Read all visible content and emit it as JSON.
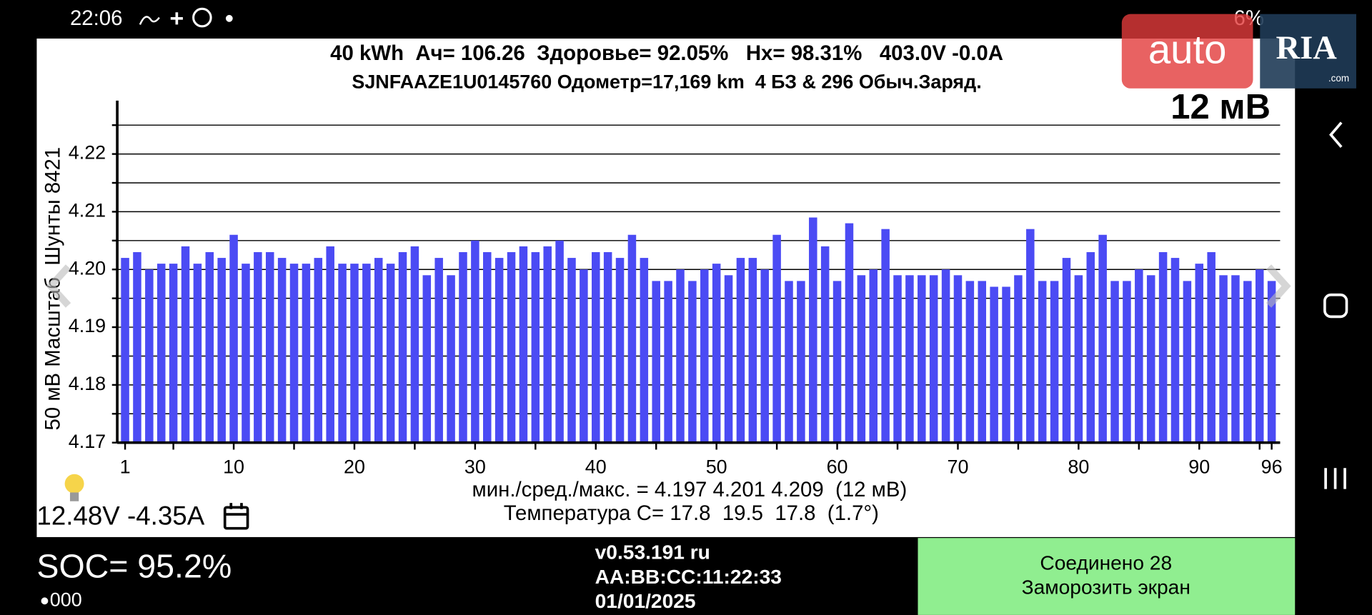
{
  "status_bar": {
    "time": "22:06",
    "battery": "6%"
  },
  "watermark": {
    "brand": "auto",
    "logo": "RIA",
    "domain": ".com"
  },
  "header": {
    "line1": "40 kWh  Ач= 106.26  Здоровье= 92.05%   Hx= 98.31%   403.0V -0.0A",
    "line2": "SJNFAAZE1U0145760 Одометр=17,169 km  4 БЗ & 296 Обыч.Заряд.",
    "scale": "12 мВ"
  },
  "chart_data": {
    "type": "bar",
    "y_label": "50 мВ Масштаб  Шунты 8421",
    "x": [
      1,
      2,
      3,
      4,
      5,
      6,
      7,
      8,
      9,
      10,
      11,
      12,
      13,
      14,
      15,
      16,
      17,
      18,
      19,
      20,
      21,
      22,
      23,
      24,
      25,
      26,
      27,
      28,
      29,
      30,
      31,
      32,
      33,
      34,
      35,
      36,
      37,
      38,
      39,
      40,
      41,
      42,
      43,
      44,
      45,
      46,
      47,
      48,
      49,
      50,
      51,
      52,
      53,
      54,
      55,
      56,
      57,
      58,
      59,
      60,
      61,
      62,
      63,
      64,
      65,
      66,
      67,
      68,
      69,
      70,
      71,
      72,
      73,
      74,
      75,
      76,
      77,
      78,
      79,
      80,
      81,
      82,
      83,
      84,
      85,
      86,
      87,
      88,
      89,
      90,
      91,
      92,
      93,
      94,
      95,
      96
    ],
    "values": [
      4.202,
      4.203,
      4.2,
      4.201,
      4.201,
      4.204,
      4.201,
      4.203,
      4.202,
      4.206,
      4.201,
      4.203,
      4.203,
      4.202,
      4.201,
      4.201,
      4.202,
      4.204,
      4.201,
      4.201,
      4.201,
      4.202,
      4.201,
      4.203,
      4.204,
      4.199,
      4.202,
      4.199,
      4.203,
      4.205,
      4.203,
      4.202,
      4.203,
      4.204,
      4.203,
      4.204,
      4.205,
      4.202,
      4.2,
      4.203,
      4.203,
      4.202,
      4.206,
      4.202,
      4.198,
      4.198,
      4.2,
      4.198,
      4.2,
      4.201,
      4.199,
      4.202,
      4.202,
      4.2,
      4.206,
      4.198,
      4.198,
      4.209,
      4.204,
      4.198,
      4.208,
      4.199,
      4.2,
      4.207,
      4.199,
      4.199,
      4.199,
      4.199,
      4.2,
      4.199,
      4.198,
      4.198,
      4.197,
      4.197,
      4.199,
      4.207,
      4.198,
      4.198,
      4.202,
      4.199,
      4.203,
      4.206,
      4.198,
      4.198,
      4.2,
      4.199,
      4.203,
      4.202,
      4.198,
      4.201,
      4.203,
      4.199,
      4.199,
      4.198,
      4.2,
      4.198
    ],
    "color": "#4b4bf4",
    "xlim": [
      0.35,
      96.7
    ],
    "xticks": [
      1,
      10,
      20,
      30,
      40,
      50,
      60,
      70,
      80,
      90,
      96
    ],
    "minor_xticks": [
      5,
      15,
      25,
      35,
      45,
      55,
      65,
      75,
      85,
      95
    ],
    "ylim": [
      4.17,
      4.23
    ],
    "yticks": [
      4.17,
      4.18,
      4.19,
      {
        "value": 4.2,
        "label": "4.20"
      },
      4.21,
      4.22
    ],
    "minor_yticks": [
      4.175,
      4.185,
      4.195,
      4.205,
      4.215,
      4.225
    ],
    "grid": true
  },
  "stats": {
    "line1": "мин./сред./макс. = 4.197 4.201 4.209  (12 мВ)",
    "line2": "Температура С= 17.8  19.5  17.8  (1.7°)"
  },
  "aux_battery": "12.48V -4.35A",
  "footer": {
    "soc": "SOC= 95.2%",
    "signal": "000",
    "version": "v0.53.191 ru",
    "mac": "AA:BB:CC:11:22:33",
    "date": "01/01/2025",
    "connected": "Соединено 28",
    "freeze": "Заморозить экран"
  }
}
